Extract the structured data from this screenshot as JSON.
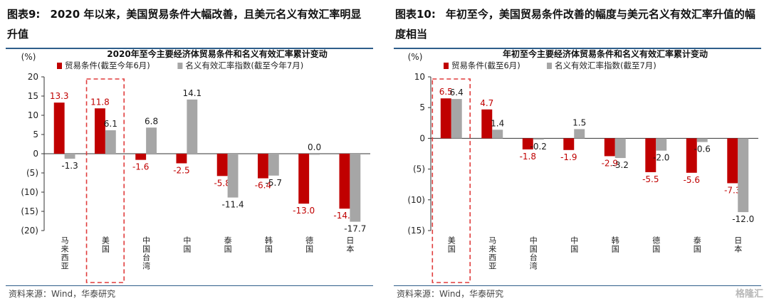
{
  "panels": [
    {
      "id": "left",
      "fig_number": "图表9:",
      "fig_title": "2020 年以来，美国贸易条件大幅改善，且美元名义有效汇率明显升值",
      "source": "资料来源：Wind，华泰研究"
    },
    {
      "id": "right",
      "fig_number": "图表10:",
      "fig_title": "年初至今，美国贸易条件改善的幅度与美元名义有效汇率升值的幅度相当",
      "source": "资料来源：Wind，华泰研究"
    }
  ],
  "watermark": "格隆汇",
  "colors": {
    "trade": "#c00000",
    "fx": "#a6a6a6",
    "label_red": "#c00000",
    "label_dark": "#1a1a1a",
    "highlight": "#e03c3c"
  },
  "chart_data": [
    {
      "type": "bar",
      "title": "2020年至今主要经济体贸易条件和名义有效汇率累计变动",
      "unit_label": "(%)",
      "categories": [
        "马来西亚",
        "美国",
        "中国台湾",
        "中国",
        "泰国",
        "韩国",
        "德国",
        "日本"
      ],
      "series": [
        {
          "name": "贸易条件(截至今年6月)",
          "values": [
            13.3,
            11.8,
            -1.6,
            -2.5,
            -5.8,
            -6.4,
            -13.0,
            -14.3
          ]
        },
        {
          "name": "名义有效汇率指数(截至今年7月)",
          "values": [
            -1.3,
            6.1,
            6.8,
            14.1,
            -11.4,
            -5.7,
            0.0,
            -17.7
          ]
        }
      ],
      "value_labels": [
        [
          "13.3",
          "11.8",
          "-1.6",
          "-2.5",
          "-5.8",
          "-6.4",
          "-13.0",
          "-14.3"
        ],
        [
          "-1.3",
          "6.1",
          "6.8",
          "14.1",
          "-11.4",
          "-5.7",
          "0.0",
          "-17.7"
        ]
      ],
      "ylim": [
        -20,
        20
      ],
      "yticks": [
        20,
        15,
        10,
        5,
        0,
        -5,
        -10,
        -15,
        -20
      ],
      "ytick_labels": [
        "20",
        "15",
        "10",
        "5",
        "0",
        "(5)",
        "(10)",
        "(15)",
        "(20)"
      ],
      "highlight_category": "美国",
      "legend_position": "top-left"
    },
    {
      "type": "bar",
      "title": "年初至今主要经济体贸易条件和名义有效汇率累计变动",
      "unit_label": "(%)",
      "categories": [
        "美国",
        "马来西亚",
        "中国台湾",
        "中国",
        "韩国",
        "德国",
        "泰国",
        "日本"
      ],
      "series": [
        {
          "name": "贸易条件(截至6月)",
          "values": [
            6.5,
            4.7,
            -1.8,
            -1.9,
            -2.9,
            -5.5,
            -5.6,
            -7.3
          ]
        },
        {
          "name": "名义有效汇率指数(截至7月)",
          "values": [
            6.4,
            1.4,
            -0.2,
            1.5,
            -3.2,
            -2.0,
            -0.6,
            -12.0
          ]
        }
      ],
      "value_labels": [
        [
          "6.5",
          "4.7",
          "-1.8",
          "-1.9",
          "-2.9",
          "-5.5",
          "-5.6",
          "-7.3"
        ],
        [
          "6.4",
          "1.4",
          "-0.2",
          "1.5",
          "-3.2",
          "-2.0",
          "-0.6",
          "-12.0"
        ]
      ],
      "ylim": [
        -15,
        10
      ],
      "yticks": [
        10,
        5,
        0,
        -5,
        -10,
        -15
      ],
      "ytick_labels": [
        "10",
        "5",
        "0",
        "(5)",
        "(10)",
        "(15)"
      ],
      "highlight_category": "美国",
      "legend_position": "top-left"
    }
  ]
}
